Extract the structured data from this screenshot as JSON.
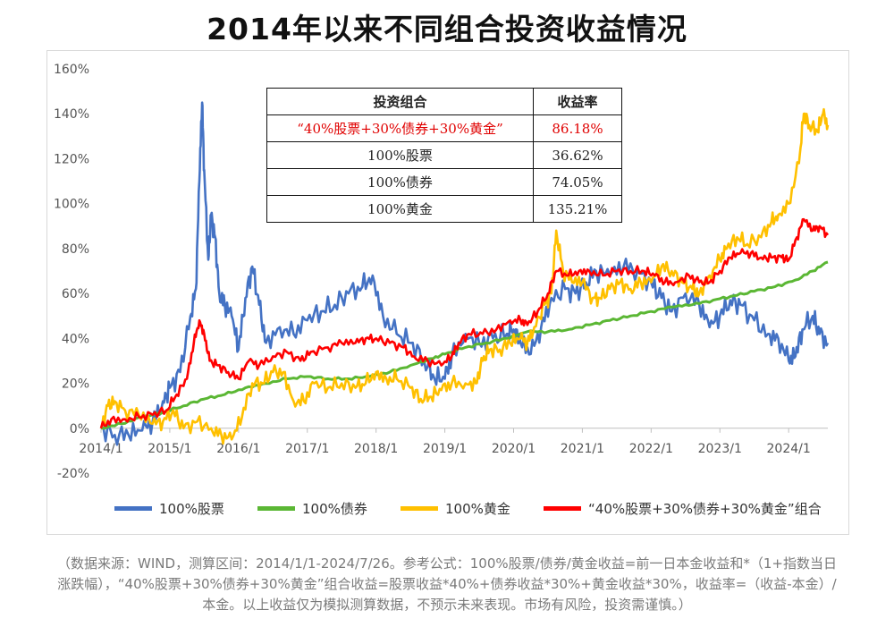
{
  "title": "2014年以来不同组合投资收益情况",
  "table": {
    "headers": [
      "投资组合",
      "收益率"
    ],
    "rows": [
      {
        "name": "“40%股票+30%债券+30%黄金”",
        "value": "86.18%",
        "highlight": true
      },
      {
        "name": "100%股票",
        "value": "36.62%",
        "highlight": false
      },
      {
        "name": "100%债券",
        "value": "74.05%",
        "highlight": false
      },
      {
        "name": "100%黄金",
        "value": "135.21%",
        "highlight": false
      }
    ]
  },
  "footnote": "（数据来源：WIND，测算区间：2014/1/1-2024/7/26。参考公式：100%股票/债券/黄金收益=前一日本金收益和*（1+指数当日涨跌幅），“40%股票+30%债券+30%黄金”组合收益=股票收益*40%+债券收益*30%+黄金收益*30%，收益率=（收益-本金）/本金。以上收益仅为模拟测算数据，不预示未来表现。市场有风险，投资需谨慎。）",
  "chart_data": {
    "type": "line",
    "title": "2014年以来不同组合投资收益情况",
    "xlabel": "",
    "ylabel": "",
    "ylim": [
      -20,
      160
    ],
    "y_ticks": [
      "-20%",
      "0%",
      "20%",
      "40%",
      "60%",
      "80%",
      "100%",
      "120%",
      "140%",
      "160%"
    ],
    "y_tick_values": [
      -20,
      0,
      20,
      40,
      60,
      80,
      100,
      120,
      140,
      160
    ],
    "x_ticks": [
      "2014/1",
      "2015/1",
      "2016/1",
      "2017/1",
      "2018/1",
      "2019/1",
      "2020/1",
      "2021/1",
      "2022/1",
      "2023/1",
      "2024/1"
    ],
    "x_tick_values": [
      2014.0,
      2015.0,
      2016.0,
      2017.0,
      2018.0,
      2019.0,
      2020.0,
      2021.0,
      2022.0,
      2023.0,
      2024.0
    ],
    "xlim": [
      2014.0,
      2024.57
    ],
    "legend_position": "bottom",
    "series": [
      {
        "name": "100%股票",
        "color": "#4472c4",
        "points": [
          [
            2014.0,
            0
          ],
          [
            2014.2,
            -3
          ],
          [
            2014.4,
            -3
          ],
          [
            2014.6,
            -1
          ],
          [
            2014.75,
            3
          ],
          [
            2014.9,
            12
          ],
          [
            2015.0,
            18
          ],
          [
            2015.15,
            25
          ],
          [
            2015.3,
            50
          ],
          [
            2015.38,
            62
          ],
          [
            2015.43,
            110
          ],
          [
            2015.47,
            145
          ],
          [
            2015.5,
            115
          ],
          [
            2015.56,
            75
          ],
          [
            2015.6,
            95
          ],
          [
            2015.66,
            85
          ],
          [
            2015.72,
            60
          ],
          [
            2015.8,
            55
          ],
          [
            2015.9,
            50
          ],
          [
            2016.0,
            35
          ],
          [
            2016.1,
            58
          ],
          [
            2016.2,
            72
          ],
          [
            2016.3,
            55
          ],
          [
            2016.4,
            38
          ],
          [
            2016.6,
            45
          ],
          [
            2016.8,
            42
          ],
          [
            2017.0,
            48
          ],
          [
            2017.2,
            52
          ],
          [
            2017.4,
            55
          ],
          [
            2017.6,
            60
          ],
          [
            2017.8,
            63
          ],
          [
            2017.95,
            68
          ],
          [
            2018.1,
            50
          ],
          [
            2018.3,
            42
          ],
          [
            2018.5,
            38
          ],
          [
            2018.7,
            30
          ],
          [
            2018.85,
            22
          ],
          [
            2019.0,
            22
          ],
          [
            2019.1,
            32
          ],
          [
            2019.3,
            42
          ],
          [
            2019.5,
            38
          ],
          [
            2019.7,
            40
          ],
          [
            2019.9,
            42
          ],
          [
            2020.0,
            44
          ],
          [
            2020.1,
            38
          ],
          [
            2020.25,
            33
          ],
          [
            2020.4,
            45
          ],
          [
            2020.55,
            58
          ],
          [
            2020.75,
            62
          ],
          [
            2020.9,
            60
          ],
          [
            2021.05,
            65
          ],
          [
            2021.2,
            70
          ],
          [
            2021.4,
            68
          ],
          [
            2021.6,
            72
          ],
          [
            2021.8,
            70
          ],
          [
            2022.0,
            65
          ],
          [
            2022.15,
            58
          ],
          [
            2022.3,
            52
          ],
          [
            2022.5,
            60
          ],
          [
            2022.7,
            55
          ],
          [
            2022.85,
            45
          ],
          [
            2023.0,
            50
          ],
          [
            2023.15,
            57
          ],
          [
            2023.3,
            55
          ],
          [
            2023.5,
            48
          ],
          [
            2023.7,
            42
          ],
          [
            2023.85,
            40
          ],
          [
            2024.0,
            30
          ],
          [
            2024.1,
            32
          ],
          [
            2024.2,
            44
          ],
          [
            2024.35,
            50
          ],
          [
            2024.45,
            42
          ],
          [
            2024.57,
            38
          ]
        ]
      },
      {
        "name": "100%债券",
        "color": "#5bb734",
        "points": [
          [
            2014.0,
            0
          ],
          [
            2014.3,
            2
          ],
          [
            2014.6,
            5
          ],
          [
            2014.9,
            7
          ],
          [
            2015.2,
            10
          ],
          [
            2015.5,
            13
          ],
          [
            2015.8,
            15
          ],
          [
            2016.1,
            18
          ],
          [
            2016.4,
            20
          ],
          [
            2016.7,
            22
          ],
          [
            2017.0,
            23
          ],
          [
            2017.3,
            22
          ],
          [
            2017.6,
            22
          ],
          [
            2017.9,
            23
          ],
          [
            2018.2,
            25
          ],
          [
            2018.5,
            28
          ],
          [
            2018.8,
            31
          ],
          [
            2019.0,
            33
          ],
          [
            2019.3,
            36
          ],
          [
            2019.6,
            38
          ],
          [
            2019.9,
            40
          ],
          [
            2020.2,
            43
          ],
          [
            2020.5,
            43
          ],
          [
            2020.8,
            44
          ],
          [
            2021.1,
            46
          ],
          [
            2021.4,
            48
          ],
          [
            2021.7,
            50
          ],
          [
            2022.0,
            52
          ],
          [
            2022.3,
            54
          ],
          [
            2022.6,
            55
          ],
          [
            2022.9,
            57
          ],
          [
            2023.2,
            59
          ],
          [
            2023.5,
            61
          ],
          [
            2023.8,
            63
          ],
          [
            2024.1,
            66
          ],
          [
            2024.35,
            70
          ],
          [
            2024.57,
            74
          ]
        ]
      },
      {
        "name": "100%黄金",
        "color": "#ffc000",
        "points": [
          [
            2014.0,
            0
          ],
          [
            2014.1,
            10
          ],
          [
            2014.2,
            12
          ],
          [
            2014.35,
            8
          ],
          [
            2014.55,
            6
          ],
          [
            2014.75,
            2
          ],
          [
            2014.9,
            3
          ],
          [
            2015.05,
            8
          ],
          [
            2015.2,
            0
          ],
          [
            2015.4,
            3
          ],
          [
            2015.6,
            0
          ],
          [
            2015.75,
            -3
          ],
          [
            2015.9,
            -5
          ],
          [
            2016.05,
            5
          ],
          [
            2016.2,
            20
          ],
          [
            2016.35,
            20
          ],
          [
            2016.5,
            25
          ],
          [
            2016.65,
            25
          ],
          [
            2016.8,
            12
          ],
          [
            2016.95,
            12
          ],
          [
            2017.1,
            20
          ],
          [
            2017.3,
            18
          ],
          [
            2017.5,
            20
          ],
          [
            2017.7,
            18
          ],
          [
            2017.85,
            20
          ],
          [
            2018.0,
            25
          ],
          [
            2018.15,
            22
          ],
          [
            2018.3,
            22
          ],
          [
            2018.5,
            18
          ],
          [
            2018.65,
            13
          ],
          [
            2018.8,
            14
          ],
          [
            2018.95,
            17
          ],
          [
            2019.1,
            20
          ],
          [
            2019.3,
            20
          ],
          [
            2019.45,
            20
          ],
          [
            2019.55,
            30
          ],
          [
            2019.65,
            35
          ],
          [
            2019.8,
            35
          ],
          [
            2019.95,
            38
          ],
          [
            2020.1,
            40
          ],
          [
            2020.2,
            38
          ],
          [
            2020.3,
            45
          ],
          [
            2020.45,
            55
          ],
          [
            2020.55,
            60
          ],
          [
            2020.62,
            88
          ],
          [
            2020.72,
            70
          ],
          [
            2020.85,
            65
          ],
          [
            2021.0,
            65
          ],
          [
            2021.15,
            58
          ],
          [
            2021.25,
            58
          ],
          [
            2021.4,
            62
          ],
          [
            2021.55,
            65
          ],
          [
            2021.7,
            62
          ],
          [
            2021.85,
            65
          ],
          [
            2022.0,
            65
          ],
          [
            2022.15,
            72
          ],
          [
            2022.3,
            70
          ],
          [
            2022.45,
            65
          ],
          [
            2022.6,
            62
          ],
          [
            2022.7,
            60
          ],
          [
            2022.85,
            68
          ],
          [
            2023.0,
            75
          ],
          [
            2023.1,
            80
          ],
          [
            2023.25,
            85
          ],
          [
            2023.4,
            82
          ],
          [
            2023.6,
            85
          ],
          [
            2023.75,
            92
          ],
          [
            2023.85,
            95
          ],
          [
            2024.0,
            100
          ],
          [
            2024.15,
            118
          ],
          [
            2024.22,
            140
          ],
          [
            2024.3,
            135
          ],
          [
            2024.42,
            132
          ],
          [
            2024.5,
            140
          ],
          [
            2024.57,
            135
          ]
        ]
      },
      {
        "name": "“40%股票+30%债券+30%黄金”组合",
        "color": "#ff0000",
        "points": [
          [
            2014.0,
            0
          ],
          [
            2014.15,
            4
          ],
          [
            2014.35,
            4
          ],
          [
            2014.55,
            5
          ],
          [
            2014.75,
            6
          ],
          [
            2014.95,
            8
          ],
          [
            2015.1,
            15
          ],
          [
            2015.25,
            22
          ],
          [
            2015.35,
            38
          ],
          [
            2015.43,
            48
          ],
          [
            2015.5,
            42
          ],
          [
            2015.58,
            30
          ],
          [
            2015.7,
            28
          ],
          [
            2015.85,
            25
          ],
          [
            2016.0,
            22
          ],
          [
            2016.15,
            30
          ],
          [
            2016.3,
            28
          ],
          [
            2016.5,
            32
          ],
          [
            2016.7,
            34
          ],
          [
            2016.9,
            30
          ],
          [
            2017.05,
            34
          ],
          [
            2017.3,
            36
          ],
          [
            2017.5,
            38
          ],
          [
            2017.7,
            38
          ],
          [
            2017.85,
            40
          ],
          [
            2018.0,
            40
          ],
          [
            2018.2,
            38
          ],
          [
            2018.4,
            36
          ],
          [
            2018.55,
            32
          ],
          [
            2018.75,
            30
          ],
          [
            2018.95,
            28
          ],
          [
            2019.1,
            32
          ],
          [
            2019.2,
            38
          ],
          [
            2019.35,
            42
          ],
          [
            2019.55,
            42
          ],
          [
            2019.75,
            44
          ],
          [
            2019.95,
            48
          ],
          [
            2020.1,
            48
          ],
          [
            2020.2,
            46
          ],
          [
            2020.35,
            52
          ],
          [
            2020.5,
            60
          ],
          [
            2020.62,
            70
          ],
          [
            2020.8,
            68
          ],
          [
            2020.95,
            70
          ],
          [
            2021.1,
            70
          ],
          [
            2021.3,
            68
          ],
          [
            2021.5,
            70
          ],
          [
            2021.7,
            70
          ],
          [
            2021.9,
            70
          ],
          [
            2022.05,
            68
          ],
          [
            2022.2,
            65
          ],
          [
            2022.35,
            65
          ],
          [
            2022.55,
            68
          ],
          [
            2022.7,
            65
          ],
          [
            2022.85,
            65
          ],
          [
            2023.0,
            70
          ],
          [
            2023.15,
            76
          ],
          [
            2023.3,
            78
          ],
          [
            2023.45,
            78
          ],
          [
            2023.6,
            76
          ],
          [
            2023.75,
            76
          ],
          [
            2023.9,
            76
          ],
          [
            2024.0,
            75
          ],
          [
            2024.12,
            85
          ],
          [
            2024.22,
            93
          ],
          [
            2024.35,
            88
          ],
          [
            2024.45,
            90
          ],
          [
            2024.57,
            86
          ]
        ]
      }
    ]
  }
}
